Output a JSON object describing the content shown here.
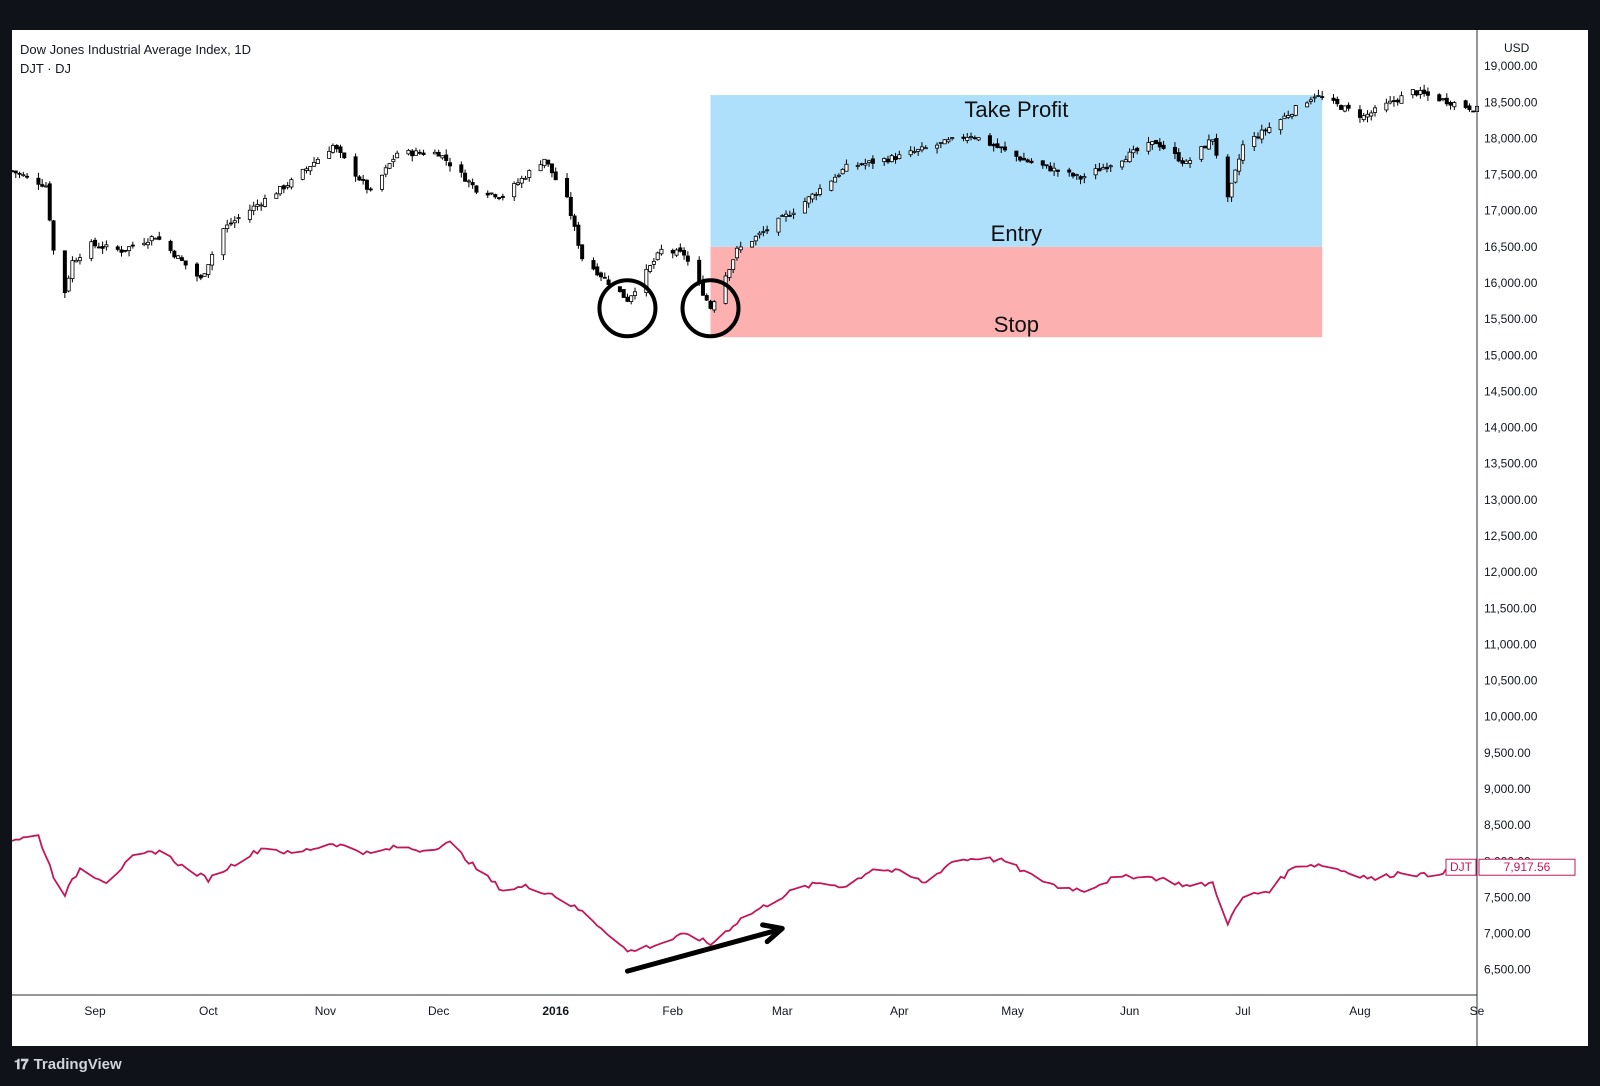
{
  "header": {
    "title": "Dow Jones Industrial Average Index, 1D",
    "symbol": "DJT · DJ"
  },
  "brand": {
    "name": "TradingView",
    "icon": "tradingview-logo-icon"
  },
  "colors": {
    "background": "#0f1319",
    "panel": "#ffffff",
    "candle_up": "#ffffff",
    "candle_down": "#000000",
    "candle_outline": "#000000",
    "djt_line": "#c2185b",
    "take_profit_zone": "#aee0fb",
    "stop_zone": "#fdb0b0",
    "annotation": "#000000"
  },
  "chart_data": [
    {
      "type": "candlestick",
      "title": "Dow Jones Industrial Average Index, 1D",
      "currency": "USD",
      "x_range": [
        "2015-08-10",
        "2016-09-01"
      ],
      "x_ticks": [
        {
          "date": "2015-09-01",
          "label": "Sep"
        },
        {
          "date": "2015-10-01",
          "label": "Oct"
        },
        {
          "date": "2015-11-01",
          "label": "Nov"
        },
        {
          "date": "2015-12-01",
          "label": "Dec"
        },
        {
          "date": "2016-01-01",
          "label": "2016",
          "bold": true
        },
        {
          "date": "2016-02-01",
          "label": "Feb"
        },
        {
          "date": "2016-03-01",
          "label": "Mar"
        },
        {
          "date": "2016-04-01",
          "label": "Apr"
        },
        {
          "date": "2016-05-01",
          "label": "May"
        },
        {
          "date": "2016-06-01",
          "label": "Jun"
        },
        {
          "date": "2016-07-01",
          "label": "Jul"
        },
        {
          "date": "2016-08-01",
          "label": "Aug"
        },
        {
          "date": "2016-09-01",
          "label": "Se"
        }
      ],
      "y_axis": {
        "unit_label": "USD",
        "range": [
          6150,
          19500
        ],
        "ticks": [
          {
            "value": 19000,
            "label": "19,000.00"
          },
          {
            "value": 18500,
            "label": "18,500.00"
          },
          {
            "value": 18000,
            "label": "18,000.00"
          },
          {
            "value": 17500,
            "label": "17,500.00"
          },
          {
            "value": 17000,
            "label": "17,000.00"
          },
          {
            "value": 16500,
            "label": "16,500.00"
          },
          {
            "value": 16000,
            "label": "16,000.00"
          },
          {
            "value": 15500,
            "label": "15,500.00"
          },
          {
            "value": 15000,
            "label": "15,000.00"
          },
          {
            "value": 14500,
            "label": "14,500.00"
          },
          {
            "value": 14000,
            "label": "14,000.00"
          },
          {
            "value": 13500,
            "label": "13,500.00"
          },
          {
            "value": 13000,
            "label": "13,000.00"
          },
          {
            "value": 12500,
            "label": "12,500.00"
          },
          {
            "value": 12000,
            "label": "12,000.00"
          },
          {
            "value": 11500,
            "label": "11,500.00"
          },
          {
            "value": 11000,
            "label": "11,000.00"
          },
          {
            "value": 10500,
            "label": "10,500.00"
          },
          {
            "value": 10000,
            "label": "10,000.00"
          },
          {
            "value": 9500,
            "label": "9,500.00"
          },
          {
            "value": 9000,
            "label": "9,000.00"
          },
          {
            "value": 8500,
            "label": "8,500.00"
          },
          {
            "value": 8000,
            "label": "8,000.00"
          },
          {
            "value": 7500,
            "label": "7,500.00"
          },
          {
            "value": 7000,
            "label": "7,000.00"
          },
          {
            "value": 6500,
            "label": "6,500.00"
          }
        ]
      },
      "price_series": {
        "name": "DJI",
        "close_anchors": [
          [
            "2015-08-10",
            17550
          ],
          [
            "2015-08-19",
            17350
          ],
          [
            "2015-08-21",
            16450
          ],
          [
            "2015-08-24",
            15880
          ],
          [
            "2015-08-26",
            16300
          ],
          [
            "2015-08-31",
            16530
          ],
          [
            "2015-09-08",
            16450
          ],
          [
            "2015-09-17",
            16650
          ],
          [
            "2015-09-29",
            16050
          ],
          [
            "2015-10-05",
            16750
          ],
          [
            "2015-10-13",
            17050
          ],
          [
            "2015-10-23",
            17400
          ],
          [
            "2015-11-03",
            17900
          ],
          [
            "2015-11-13",
            17250
          ],
          [
            "2015-11-20",
            17800
          ],
          [
            "2015-12-01",
            17800
          ],
          [
            "2015-12-11",
            17300
          ],
          [
            "2015-12-18",
            17200
          ],
          [
            "2015-12-29",
            17720
          ],
          [
            "2016-01-04",
            17150
          ],
          [
            "2016-01-08",
            16350
          ],
          [
            "2016-01-20",
            15770
          ],
          [
            "2016-01-29",
            16450
          ],
          [
            "2016-02-04",
            16400
          ],
          [
            "2016-02-11",
            15660
          ],
          [
            "2016-02-18",
            16450
          ],
          [
            "2016-03-04",
            17000
          ],
          [
            "2016-03-18",
            17600
          ],
          [
            "2016-04-01",
            17750
          ],
          [
            "2016-04-20",
            18050
          ],
          [
            "2016-05-04",
            17700
          ],
          [
            "2016-05-19",
            17450
          ],
          [
            "2016-06-08",
            17950
          ],
          [
            "2016-06-16",
            17650
          ],
          [
            "2016-06-23",
            18000
          ],
          [
            "2016-06-27",
            17150
          ],
          [
            "2016-07-01",
            17900
          ],
          [
            "2016-07-08",
            18150
          ],
          [
            "2016-07-20",
            18600
          ],
          [
            "2016-08-02",
            18300
          ],
          [
            "2016-08-15",
            18650
          ],
          [
            "2016-09-01",
            18400
          ]
        ]
      },
      "overlay_series": {
        "name": "DJT",
        "label": "DJT",
        "last_value": "7,917.56",
        "anchors": [
          [
            "2015-08-10",
            8300
          ],
          [
            "2015-08-17",
            8350
          ],
          [
            "2015-08-21",
            7800
          ],
          [
            "2015-08-24",
            7550
          ],
          [
            "2015-08-28",
            7900
          ],
          [
            "2015-09-04",
            7720
          ],
          [
            "2015-09-11",
            8050
          ],
          [
            "2015-09-18",
            8150
          ],
          [
            "2015-09-25",
            7900
          ],
          [
            "2015-10-01",
            7750
          ],
          [
            "2015-10-09",
            8000
          ],
          [
            "2015-10-16",
            8200
          ],
          [
            "2015-10-23",
            8100
          ],
          [
            "2015-11-03",
            8250
          ],
          [
            "2015-11-13",
            8100
          ],
          [
            "2015-11-20",
            8200
          ],
          [
            "2015-11-27",
            8150
          ],
          [
            "2015-12-04",
            8250
          ],
          [
            "2015-12-11",
            7900
          ],
          [
            "2015-12-18",
            7600
          ],
          [
            "2015-12-24",
            7650
          ],
          [
            "2015-12-31",
            7550
          ],
          [
            "2016-01-08",
            7300
          ],
          [
            "2016-01-15",
            7000
          ],
          [
            "2016-01-20",
            6750
          ],
          [
            "2016-01-28",
            6850
          ],
          [
            "2016-02-05",
            7000
          ],
          [
            "2016-02-11",
            6850
          ],
          [
            "2016-02-19",
            7200
          ],
          [
            "2016-02-26",
            7400
          ],
          [
            "2016-03-04",
            7600
          ],
          [
            "2016-03-11",
            7700
          ],
          [
            "2016-03-18",
            7650
          ],
          [
            "2016-03-25",
            7900
          ],
          [
            "2016-04-01",
            7850
          ],
          [
            "2016-04-08",
            7700
          ],
          [
            "2016-04-15",
            8000
          ],
          [
            "2016-04-22",
            8050
          ],
          [
            "2016-04-29",
            8000
          ],
          [
            "2016-05-06",
            7800
          ],
          [
            "2016-05-13",
            7650
          ],
          [
            "2016-05-20",
            7600
          ],
          [
            "2016-05-27",
            7750
          ],
          [
            "2016-06-03",
            7800
          ],
          [
            "2016-06-10",
            7750
          ],
          [
            "2016-06-17",
            7650
          ],
          [
            "2016-06-23",
            7700
          ],
          [
            "2016-06-27",
            7150
          ],
          [
            "2016-07-01",
            7500
          ],
          [
            "2016-07-08",
            7600
          ],
          [
            "2016-07-15",
            7950
          ],
          [
            "2016-07-22",
            7950
          ],
          [
            "2016-07-29",
            7850
          ],
          [
            "2016-08-05",
            7750
          ],
          [
            "2016-08-12",
            7850
          ],
          [
            "2016-08-19",
            7800
          ],
          [
            "2016-08-26",
            7900
          ],
          [
            "2016-09-01",
            7917.56
          ]
        ]
      },
      "position_tool": {
        "start": "2016-02-11",
        "end": "2016-07-22",
        "take_profit": 18600,
        "entry": 16500,
        "stop": 15250,
        "labels": {
          "take_profit": "Take Profit",
          "entry": "Entry",
          "stop": "Stop"
        }
      },
      "annotations": {
        "circles": [
          {
            "date": "2016-01-20",
            "value": 15650
          },
          {
            "date": "2016-02-11",
            "value": 15650
          }
        ],
        "arrow": {
          "from": [
            "2016-01-20",
            6480
          ],
          "to": [
            "2016-03-01",
            7070
          ]
        }
      }
    }
  ]
}
